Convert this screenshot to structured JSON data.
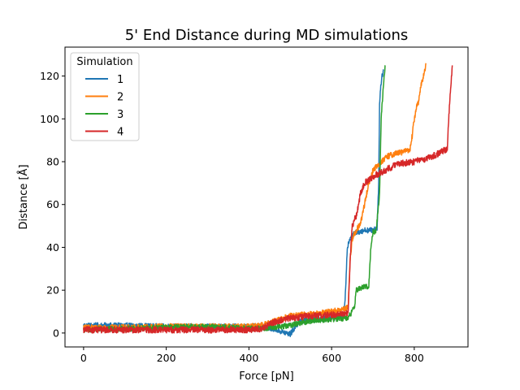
{
  "chart_data": {
    "type": "line",
    "title": "5' End Distance during MD simulations",
    "xlabel": "Force [pN]",
    "ylabel": "Distance [Å]",
    "xlim": [
      -45,
      930
    ],
    "ylim": [
      -6.5,
      133.5
    ],
    "x_ticks": [
      0,
      200,
      400,
      600,
      800
    ],
    "x_tick_labels": [
      "0",
      "200",
      "400",
      "600",
      "800"
    ],
    "y_ticks": [
      0,
      20,
      40,
      60,
      80,
      100,
      120
    ],
    "y_tick_labels": [
      "0",
      "20",
      "40",
      "60",
      "80",
      "100",
      "120"
    ],
    "grid": false,
    "legend": {
      "title": "Simulation",
      "position": "top-left"
    },
    "series": [
      {
        "name": "1",
        "color": "#1f77b4",
        "noise": 1.3,
        "x": [
          0,
          100,
          200,
          300,
          400,
          430,
          460,
          480,
          500,
          520,
          540,
          600,
          620,
          630,
          634,
          638,
          645,
          660,
          680,
          700,
          710,
          714,
          716,
          719,
          722,
          726
        ],
        "y": [
          3.5,
          3.5,
          3.0,
          3.0,
          3.0,
          3.0,
          2.0,
          0.5,
          -0.5,
          5.0,
          6.0,
          7.0,
          7.5,
          8.0,
          20.0,
          40.0,
          45.0,
          47.0,
          48.0,
          48.0,
          49.0,
          70.0,
          108.0,
          115.0,
          120.0,
          123.0
        ]
      },
      {
        "name": "2",
        "color": "#ff7f0e",
        "noise": 1.4,
        "x": [
          0,
          100,
          200,
          300,
          400,
          440,
          500,
          560,
          600,
          630,
          640,
          645,
          650,
          660,
          670,
          690,
          700,
          720,
          740,
          760,
          780,
          790,
          795,
          800,
          805,
          810,
          816,
          825,
          828
        ],
        "y": [
          2.5,
          2.5,
          3.0,
          3.0,
          3.0,
          4.0,
          8.0,
          9.0,
          10.0,
          11.0,
          12.0,
          35.0,
          44.0,
          48.0,
          51.0,
          70.0,
          76.0,
          80.0,
          83.0,
          84.0,
          85.0,
          86.0,
          92.0,
          100.0,
          105.0,
          108.0,
          115.0,
          122.0,
          126.0
        ]
      },
      {
        "name": "3",
        "color": "#2ca02c",
        "noise": 1.3,
        "x": [
          0,
          100,
          200,
          300,
          400,
          450,
          480,
          520,
          560,
          600,
          640,
          655,
          660,
          670,
          690,
          695,
          700,
          708,
          716,
          720,
          725,
          730
        ],
        "y": [
          1.5,
          2.0,
          2.5,
          3.0,
          2.0,
          2.5,
          3.0,
          4.5,
          6.0,
          6.5,
          7.0,
          12.0,
          20.0,
          21.0,
          22.0,
          40.0,
          47.0,
          48.0,
          65.0,
          100.0,
          115.0,
          125.0
        ]
      },
      {
        "name": "4",
        "color": "#d62728",
        "noise": 1.5,
        "x": [
          0,
          100,
          200,
          300,
          400,
          430,
          460,
          500,
          550,
          600,
          630,
          640,
          645,
          650,
          660,
          670,
          680,
          700,
          720,
          740,
          760,
          800,
          840,
          870,
          880,
          882,
          885,
          888,
          892
        ],
        "y": [
          1.5,
          1.5,
          1.5,
          1.5,
          1.5,
          2.0,
          5.0,
          7.0,
          8.0,
          8.5,
          9.0,
          9.5,
          35.0,
          50.0,
          55.0,
          65.0,
          70.0,
          73.0,
          75.0,
          77.0,
          79.0,
          80.0,
          82.0,
          85.0,
          86.0,
          95.0,
          105.0,
          115.0,
          125.0
        ]
      }
    ]
  }
}
